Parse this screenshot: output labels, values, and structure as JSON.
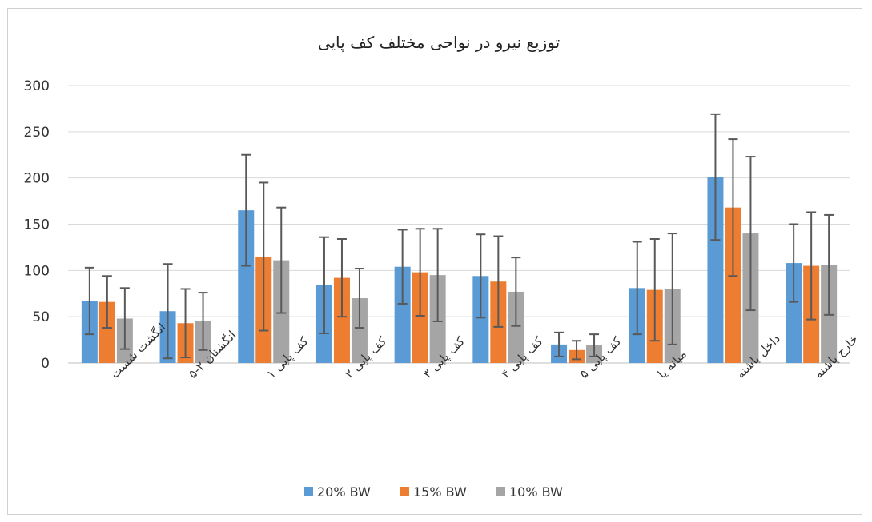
{
  "chart_data": {
    "type": "bar",
    "title": "توزیع نیرو در نواحی مختلف کف پایی",
    "xlabel": "",
    "ylabel": "",
    "ylim": [
      0,
      300
    ],
    "yticks": [
      0,
      50,
      100,
      150,
      200,
      250,
      300
    ],
    "grid": true,
    "legend": "bottom",
    "error_bars": true,
    "categories": [
      "انگشت شست",
      "انگشتان ۲-۵",
      "کف پایی ۱",
      "کف پایی ۲",
      "کف پایی ۳",
      "کف پایی ۴",
      "کف پایی ۵",
      "میانه پا",
      "داخل پاشنه",
      "خارج پاشنه"
    ],
    "series": [
      {
        "name": "20% BW",
        "color": "#5b9bd5",
        "values": [
          67,
          56,
          165,
          84,
          104,
          94,
          20,
          81,
          201,
          108
        ],
        "errors": [
          36,
          51,
          60,
          52,
          40,
          45,
          13,
          50,
          68,
          42
        ]
      },
      {
        "name": "15% BW",
        "color": "#ed7d31",
        "values": [
          66,
          43,
          115,
          92,
          98,
          88,
          14,
          79,
          168,
          105
        ],
        "errors": [
          28,
          37,
          80,
          42,
          47,
          49,
          10,
          55,
          74,
          58
        ]
      },
      {
        "name": "10% BW",
        "color": "#a5a5a5",
        "values": [
          48,
          45,
          111,
          70,
          95,
          77,
          19,
          80,
          140,
          106
        ],
        "errors": [
          33,
          31,
          57,
          32,
          50,
          37,
          12,
          60,
          83,
          54
        ]
      }
    ]
  }
}
